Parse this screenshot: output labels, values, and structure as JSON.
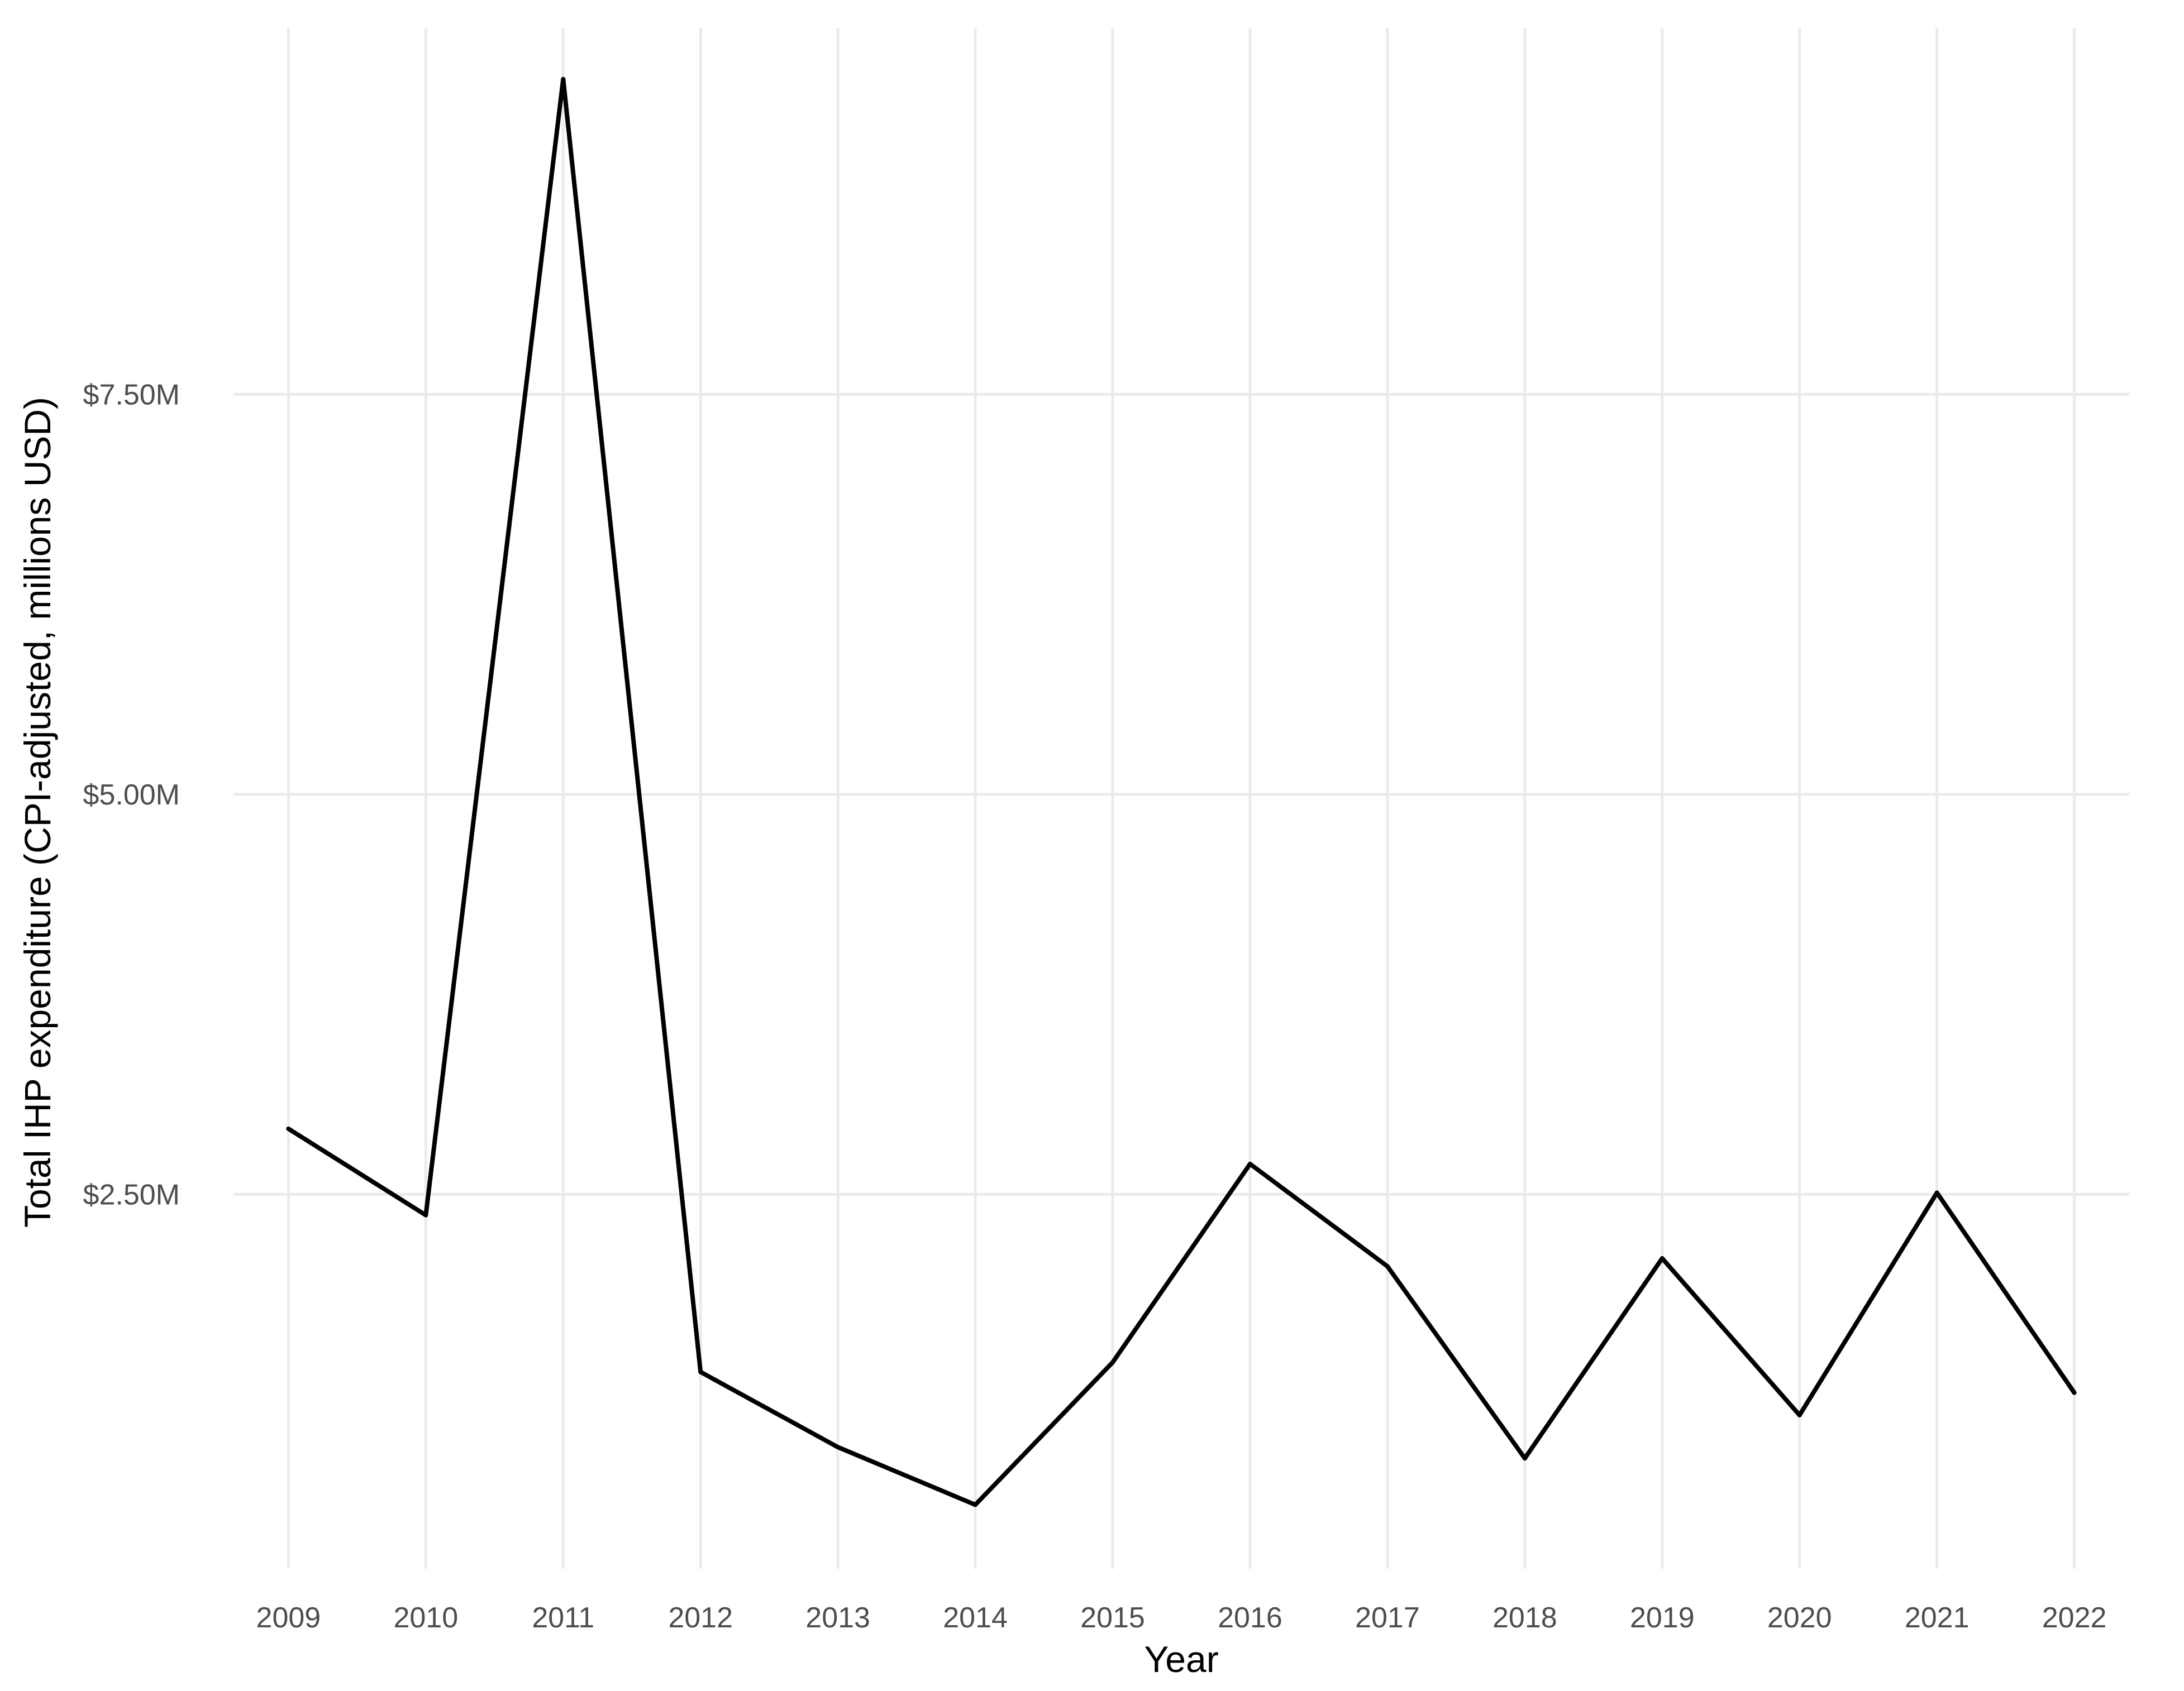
{
  "chart_data": {
    "type": "line",
    "title": "",
    "xlabel": "Year",
    "ylabel": "Total IHP expenditure (CPI-adjusted, millions USD)",
    "x": [
      2009,
      2010,
      2011,
      2012,
      2013,
      2014,
      2015,
      2016,
      2017,
      2018,
      2019,
      2020,
      2021,
      2022
    ],
    "series": [
      {
        "values": [
          2.91,
          2.37,
          9.47,
          1.39,
          0.92,
          0.56,
          1.45,
          2.69,
          2.05,
          0.85,
          2.1,
          1.12,
          2.51,
          1.26
        ]
      }
    ],
    "yticks": [
      {
        "value": 2.5,
        "label": "$2.50M"
      },
      {
        "value": 5.0,
        "label": "$5.00M"
      },
      {
        "value": 7.5,
        "label": "$7.50M"
      }
    ],
    "xticks": [
      "2009",
      "2010",
      "2011",
      "2012",
      "2013",
      "2014",
      "2015",
      "2016",
      "2017",
      "2018",
      "2019",
      "2020",
      "2021",
      "2022"
    ],
    "xlim": [
      2008.6,
      2022.4
    ],
    "ylim": [
      0.16,
      9.86
    ],
    "grid": true,
    "legend": "none",
    "line_color": "#000000",
    "grid_color": "#ebebeb"
  }
}
